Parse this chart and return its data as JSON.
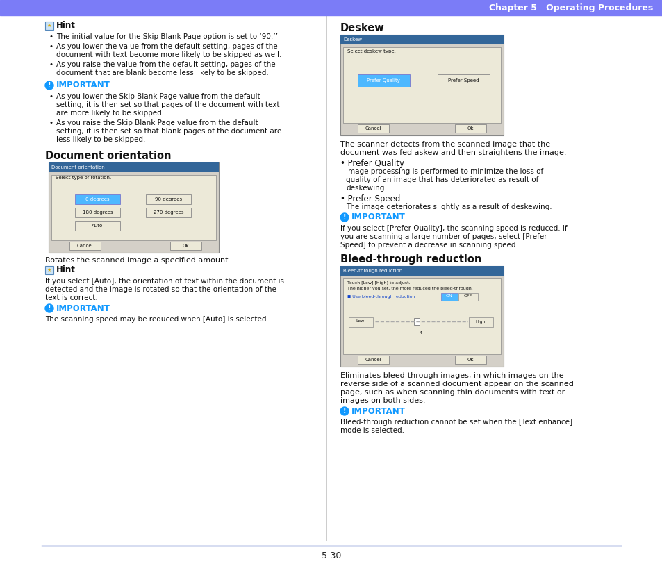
{
  "header_color": "#7b7cf7",
  "header_text": "Chapter 5   Operating Procedures",
  "header_text_color": "#ffffff",
  "bg_color": "#ffffff",
  "page_number": "5-30",
  "footer_line_color": "#3355bb",
  "left_col": {
    "hint1_bullets": [
      "The initial value for the Skip Blank Page option is set to ‘90.’’",
      "As you lower the value from the default setting, pages of the\ndocument with text become more likely to be skipped as well.",
      "As you raise the value from the default setting, pages of the\ndocument that are blank become less likely to be skipped."
    ],
    "important1_bullets": [
      "As you lower the Skip Blank Page value from the default\nsetting, it is then set so that pages of the document with text\nare more likely to be skipped.",
      "As you raise the Skip Blank Page value from the default\nsetting, it is then set so that blank pages of the document are\nless likely to be skipped."
    ],
    "doc_orient_title": "Document orientation",
    "doc_orient_desc": "Rotates the scanned image a specified amount.",
    "hint2_text": "If you select [Auto], the orientation of text within the document is\ndetected and the image is rotated so that the orientation of the\ntext is correct.",
    "important2_text": "The scanning speed may be reduced when [Auto] is selected."
  },
  "right_col": {
    "deskew_title": "Deskew",
    "deskew_desc1": "The scanner detects from the scanned image that the",
    "deskew_desc2": "document was fed askew and then straightens the image.",
    "pq_title": "Prefer Quality",
    "pq_lines": [
      "Image processing is performed to minimize the loss of",
      "quality of an image that has deteriorated as result of",
      "deskewing."
    ],
    "ps_title": "Prefer Speed",
    "ps_line": "The image deteriorates slightly as a result of deskewing.",
    "important3_lines": [
      "If you select [Prefer Quality], the scanning speed is reduced. If",
      "you are scanning a large number of pages, select [Prefer",
      "Speed] to prevent a decrease in scanning speed."
    ],
    "bleed_title": "Bleed-through reduction",
    "bleed_desc_lines": [
      "Eliminates bleed-through images, in which images on the",
      "reverse side of a scanned document appear on the scanned",
      "page, such as when scanning thin documents with text or",
      "images on both sides."
    ],
    "important4_lines": [
      "Bleed-through reduction cannot be set when the [Text enhance]",
      "mode is selected."
    ]
  }
}
